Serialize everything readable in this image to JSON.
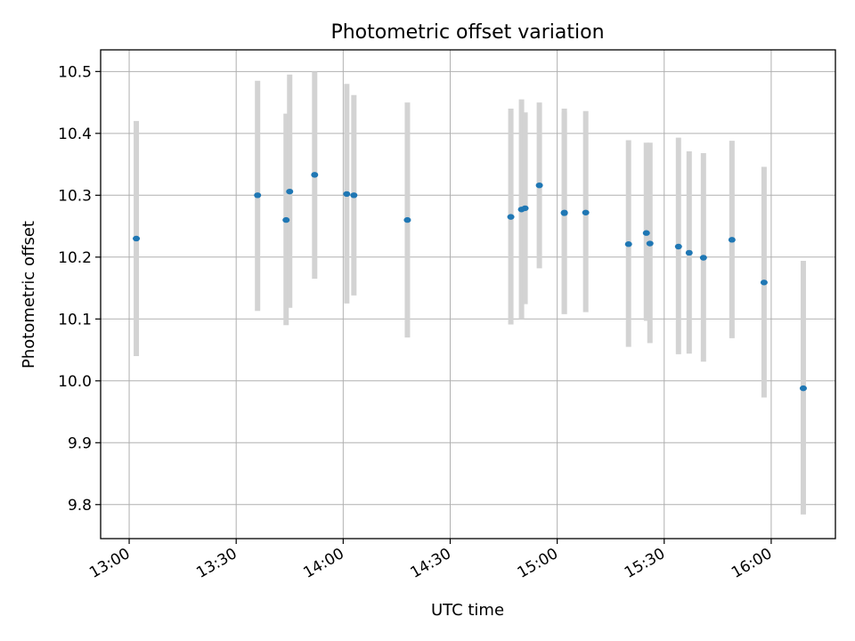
{
  "chart_data": {
    "type": "scatter",
    "title": "Photometric offset variation",
    "xlabel": "UTC time",
    "ylabel": "Photometric offset",
    "xlim": [
      "12:52",
      "16:18"
    ],
    "ylim": [
      9.745,
      10.535
    ],
    "x_ticks": [
      "13:00",
      "13:30",
      "14:00",
      "14:30",
      "15:00",
      "15:30",
      "16:00"
    ],
    "y_ticks": [
      "9.8",
      "9.9",
      "10.0",
      "10.1",
      "10.2",
      "10.3",
      "10.4",
      "10.5"
    ],
    "grid": true,
    "colors": {
      "point": "#1f77b4",
      "errorbar": "#d3d3d3",
      "grid": "#b0b0b0"
    },
    "points": [
      {
        "t": "13:02",
        "y": 10.23,
        "low": 10.04,
        "high": 10.42
      },
      {
        "t": "13:36",
        "y": 10.3,
        "low": 10.113,
        "high": 10.485
      },
      {
        "t": "13:44",
        "y": 10.26,
        "low": 10.09,
        "high": 10.432
      },
      {
        "t": "13:45",
        "y": 10.306,
        "low": 10.118,
        "high": 10.495
      },
      {
        "t": "13:52",
        "y": 10.333,
        "low": 10.165,
        "high": 10.5
      },
      {
        "t": "14:01",
        "y": 10.302,
        "low": 10.125,
        "high": 10.48
      },
      {
        "t": "14:03",
        "y": 10.3,
        "low": 10.138,
        "high": 10.462
      },
      {
        "t": "14:18",
        "y": 10.26,
        "low": 10.07,
        "high": 10.45
      },
      {
        "t": "14:47",
        "y": 10.265,
        "low": 10.091,
        "high": 10.44
      },
      {
        "t": "14:50",
        "y": 10.277,
        "low": 10.1,
        "high": 10.455
      },
      {
        "t": "14:51",
        "y": 10.279,
        "low": 10.124,
        "high": 10.434
      },
      {
        "t": "14:55",
        "y": 10.316,
        "low": 10.182,
        "high": 10.45
      },
      {
        "t": "15:02",
        "y": 10.271,
        "low": 10.108,
        "high": 10.434
      },
      {
        "t": "15:02",
        "y": 10.272,
        "low": 10.108,
        "high": 10.44
      },
      {
        "t": "15:08",
        "y": 10.272,
        "low": 10.111,
        "high": 10.436
      },
      {
        "t": "15:20",
        "y": 10.221,
        "low": 10.055,
        "high": 10.389
      },
      {
        "t": "15:25",
        "y": 10.239,
        "low": 10.097,
        "high": 10.385
      },
      {
        "t": "15:26",
        "y": 10.222,
        "low": 10.061,
        "high": 10.385
      },
      {
        "t": "15:34",
        "y": 10.217,
        "low": 10.043,
        "high": 10.393
      },
      {
        "t": "15:37",
        "y": 10.207,
        "low": 10.044,
        "high": 10.371
      },
      {
        "t": "15:41",
        "y": 10.199,
        "low": 10.031,
        "high": 10.368
      },
      {
        "t": "15:49",
        "y": 10.228,
        "low": 10.069,
        "high": 10.388
      },
      {
        "t": "15:58",
        "y": 10.159,
        "low": 9.973,
        "high": 10.346
      },
      {
        "t": "16:09",
        "y": 9.988,
        "low": 9.784,
        "high": 10.194
      }
    ]
  }
}
